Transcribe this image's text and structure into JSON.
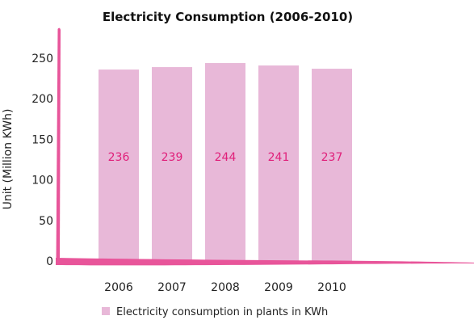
{
  "chart_data": {
    "type": "bar",
    "title": "Electricity Consumption (2006-2010)",
    "ylabel": "Unit (Million KWh)",
    "xlabel": "",
    "categories": [
      "2006",
      "2007",
      "2008",
      "2009",
      "2010"
    ],
    "series": [
      {
        "name": "Electricity consumption in plants in KWh",
        "values": [
          236,
          239,
          244,
          241,
          237
        ]
      }
    ],
    "data_labels": [
      "236",
      "239",
      "244",
      "241",
      "237"
    ],
    "yticks": [
      "0",
      "50",
      "100",
      "150",
      "200",
      "250"
    ],
    "ylim": [
      0,
      250
    ],
    "grid": false,
    "legend_position": "bottom",
    "colors": {
      "bar": "#e8b8d8",
      "label": "#e0207a",
      "axis": "#e8559a"
    }
  }
}
